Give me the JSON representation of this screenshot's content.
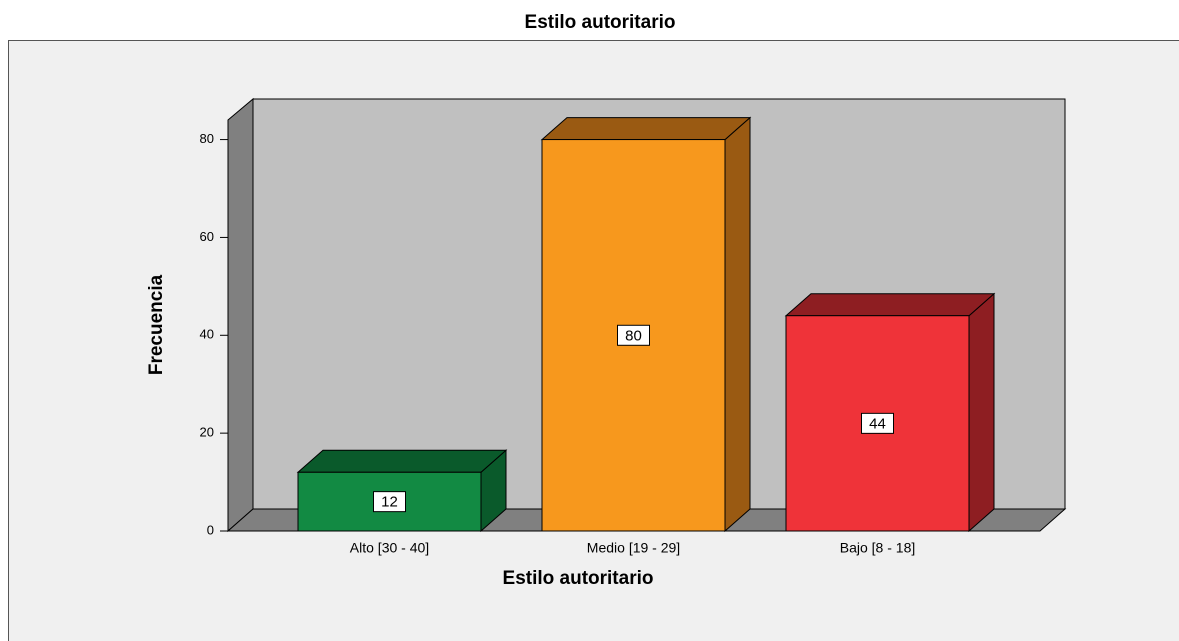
{
  "chart_data": {
    "type": "bar3d",
    "title": "Estilo autoritario",
    "x_label": "Estilo autoritario",
    "y_label": "Frecuencia",
    "categories": [
      "Alto [30 - 40]",
      "Medio [19 - 29]",
      "Bajo [8 - 18]"
    ],
    "values": [
      12,
      80,
      44
    ],
    "colors": [
      "#128a43",
      "#f7981d",
      "#ef3339"
    ],
    "side_colors": [
      "#0a5a2b",
      "#9a5a12",
      "#8e1e22"
    ],
    "ylim": [
      0,
      84
    ],
    "yticks": [
      0,
      20,
      40,
      60,
      80
    ]
  }
}
